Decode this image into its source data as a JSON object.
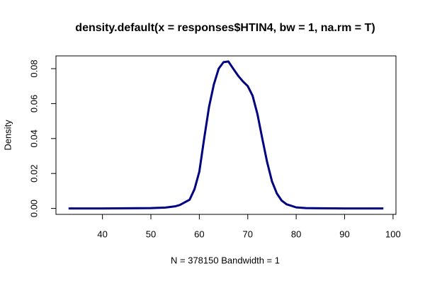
{
  "chart_data": {
    "type": "line",
    "title": "density.default(x = responses$HTIN4, bw = 1, na.rm = T)",
    "x_label": "N = 378150   Bandwidth = 1",
    "y_label": "Density",
    "x": [
      33,
      40,
      45,
      50,
      53,
      55,
      56,
      57,
      58,
      59,
      60,
      61,
      62,
      63,
      64,
      65,
      66,
      67,
      68,
      69,
      70,
      71,
      72,
      73,
      74,
      75,
      76,
      77,
      78,
      80,
      82,
      85,
      90,
      98
    ],
    "values": [
      0,
      0,
      0.0001,
      0.0002,
      0.0005,
      0.0012,
      0.002,
      0.0035,
      0.005,
      0.011,
      0.021,
      0.04,
      0.058,
      0.071,
      0.08,
      0.0837,
      0.0841,
      0.08,
      0.076,
      0.0727,
      0.07,
      0.0645,
      0.054,
      0.04,
      0.0265,
      0.0155,
      0.0086,
      0.0045,
      0.0024,
      0.0006,
      0.0002,
      0.0001,
      0,
      0
    ],
    "color": "#000080",
    "xlim": [
      30.4,
      100.6
    ],
    "ylim": [
      -0.0034,
      0.0873
    ],
    "xticks": [
      40,
      50,
      60,
      70,
      80,
      90,
      100
    ],
    "yticks": [
      {
        "value": 0,
        "label": "0.00"
      },
      0.02,
      0.04,
      0.06,
      0.08
    ]
  }
}
